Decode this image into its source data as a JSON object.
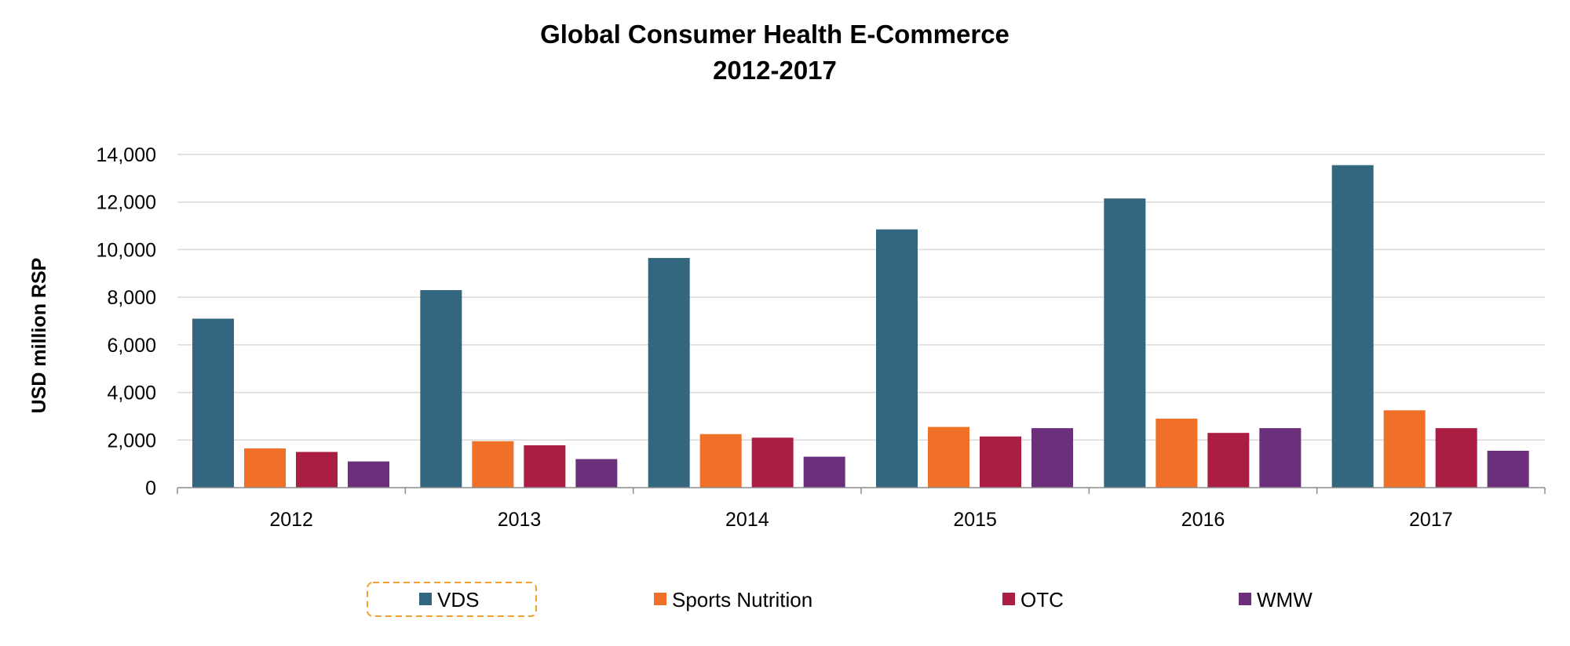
{
  "chart_data": {
    "type": "bar",
    "title": "Global Consumer Health E-Commerce",
    "subtitle": "2012-2017",
    "xlabel": "",
    "ylabel": "USD million RSP",
    "ylim": [
      0,
      14000
    ],
    "yticks": [
      0,
      2000,
      4000,
      6000,
      8000,
      10000,
      12000,
      14000
    ],
    "ytick_labels": [
      "0",
      "2,000",
      "4,000",
      "6,000",
      "8,000",
      "10,000",
      "12,000",
      "14,000"
    ],
    "grid": true,
    "legend_position": "bottom",
    "categories": [
      "2012",
      "2013",
      "2014",
      "2015",
      "2016",
      "2017"
    ],
    "series": [
      {
        "name": "VDS",
        "color": "#33667f",
        "values": [
          7100,
          8300,
          9650,
          10850,
          12150,
          13550
        ]
      },
      {
        "name": "Sports Nutrition",
        "color": "#f07028",
        "values": [
          1650,
          1950,
          2250,
          2550,
          2900,
          3250
        ]
      },
      {
        "name": "OTC",
        "color": "#a91e42",
        "values": [
          1500,
          1780,
          2100,
          2150,
          2300,
          2500
        ]
      },
      {
        "name": "WMW",
        "color": "#6b2f7c",
        "values": [
          1100,
          1200,
          1300,
          2500,
          2500,
          1550
        ]
      }
    ],
    "colors": {
      "gridline": "#d9d9d9",
      "axis": "#8c8c8c",
      "legend_highlight": "#f0a030"
    }
  }
}
